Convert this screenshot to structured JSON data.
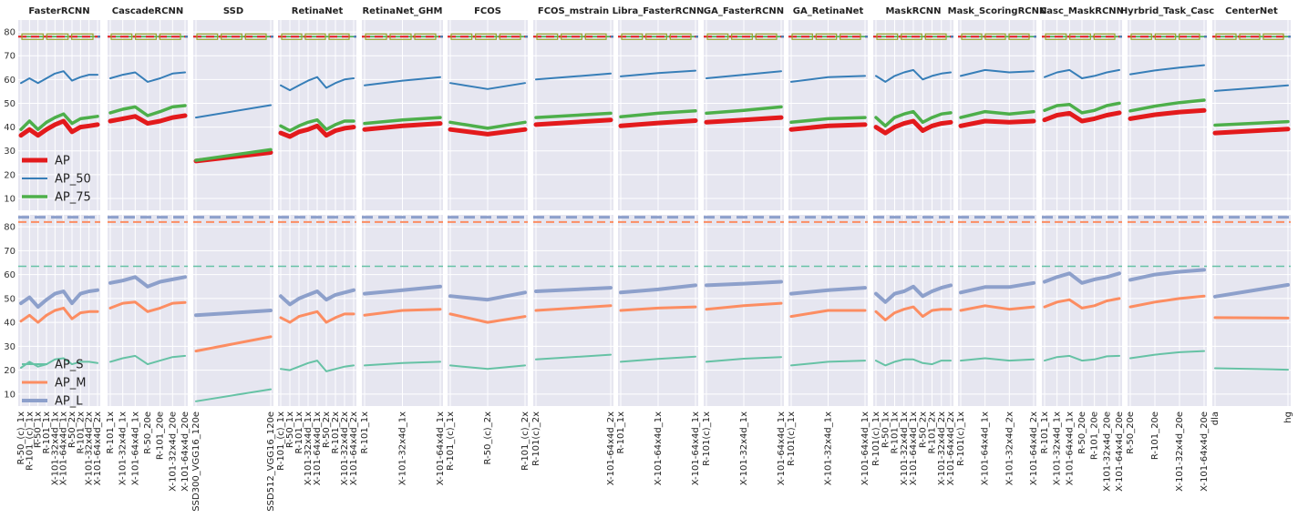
{
  "figure": {
    "rows": [
      {
        "name": "top",
        "ylim": [
          5,
          85
        ],
        "yticks": [
          10,
          20,
          30,
          40,
          50,
          60,
          70,
          80
        ]
      },
      {
        "name": "bottom",
        "ylim": [
          5,
          85
        ],
        "yticks": [
          10,
          20,
          30,
          40,
          50,
          60,
          70,
          80
        ]
      }
    ],
    "grid": true,
    "legends": [
      {
        "row": 0,
        "panel": 0,
        "placement": "lower-left",
        "entries": [
          "AP",
          "AP_50",
          "AP_75"
        ]
      },
      {
        "row": 1,
        "panel": 0,
        "placement": "lower-left",
        "entries": [
          "AP_S",
          "AP_M",
          "AP_L"
        ]
      }
    ]
  },
  "colors": {
    "AP": "#e31a1c",
    "AP_50": "#377eb8",
    "AP_75": "#4daf4a",
    "AP_S": "#66c2a5",
    "AP_M": "#fc8d62",
    "AP_L": "#8da0cb",
    "background": "#e6e6f0",
    "grid": "#ffffff",
    "marker_box": "#9aa52a"
  },
  "chart_data": [
    {
      "type": "line",
      "title": "FasterRCNN",
      "categories": [
        "R-50_(c)_1x",
        "R-101_(c)_1x",
        "R-50_1x",
        "R-101_1x",
        "X-101-32x4d_1x",
        "X-101-64x4d_1x",
        "R-50_2x",
        "R-101_2x",
        "X-101-32x4d_2x",
        "X-101-64x4d_2x"
      ],
      "top": {
        "AP": [
          36.5,
          39,
          36.5,
          39,
          41,
          42.5,
          38,
          40,
          40.5,
          41
        ],
        "AP_50": [
          58.5,
          60.5,
          58.5,
          60.5,
          62.5,
          63.5,
          59.5,
          61,
          62,
          62
        ],
        "AP_75": [
          39,
          42.5,
          39,
          42,
          44,
          45.5,
          41.5,
          43.5,
          44,
          44.5
        ]
      },
      "bottom": {
        "AP_S": [
          21,
          23.5,
          21.5,
          22.5,
          24.5,
          25,
          22.5,
          23.5,
          23.5,
          23
        ],
        "AP_M": [
          40.5,
          43,
          40,
          43,
          45,
          46,
          41.5,
          44,
          44.5,
          44.5
        ],
        "AP_L": [
          48,
          50.5,
          46.5,
          49.5,
          52,
          53,
          48,
          52,
          53,
          53.5
        ]
      }
    },
    {
      "type": "line",
      "title": "CascadeRCNN",
      "categories": [
        "R-101_1x",
        "X-101-32x4d_1x",
        "X-101-64x4d_1x",
        "R-50_20e",
        "R-101_20e",
        "X-101-32x4d_20e",
        "X-101-64x4d_20e"
      ],
      "top": {
        "AP": [
          42.5,
          43.5,
          44.5,
          41.5,
          42.5,
          44,
          44.8
        ],
        "AP_50": [
          60.5,
          62,
          63,
          59,
          60.5,
          62.5,
          63
        ],
        "AP_75": [
          46,
          47.5,
          48.5,
          44.8,
          46.5,
          48.5,
          49
        ]
      },
      "bottom": {
        "AP_S": [
          23.5,
          25,
          26,
          22.5,
          24,
          25.5,
          26
        ],
        "AP_M": [
          46,
          48,
          48.5,
          44.5,
          46,
          48,
          48.3
        ],
        "AP_L": [
          56.5,
          57.5,
          59,
          55,
          57,
          58,
          59
        ]
      }
    },
    {
      "type": "line",
      "title": "SSD",
      "categories": [
        "SSD300_VGG16_120e",
        "SSD512_VGG16_120e"
      ],
      "top": {
        "AP": [
          25.7,
          29.3
        ],
        "AP_50": [
          44,
          49.2
        ],
        "AP_75": [
          26,
          30.5
        ]
      },
      "bottom": {
        "AP_S": [
          7,
          12
        ],
        "AP_M": [
          28,
          34
        ],
        "AP_L": [
          43,
          45
        ]
      }
    },
    {
      "type": "line",
      "title": "RetinaNet",
      "categories": [
        "R-101_(c)_1x",
        "R-50_1x",
        "R-101_1x",
        "X-101-32x4d_1x",
        "X-101-64x4d_1x",
        "R-50_2x",
        "R-101_2x",
        "X-101-32x4d_2x",
        "X-101-64x4d_2x"
      ],
      "top": {
        "AP": [
          37.5,
          36,
          38,
          39,
          40.5,
          36.5,
          38.5,
          39.5,
          40
        ],
        "AP_50": [
          57.5,
          55.5,
          57.5,
          59.5,
          61,
          56.5,
          58.5,
          60,
          60.5
        ],
        "AP_75": [
          40.5,
          38.5,
          40.5,
          42,
          43,
          39,
          41,
          42.5,
          42.5
        ]
      },
      "bottom": {
        "AP_S": [
          20.5,
          20,
          21.5,
          23,
          24,
          19.5,
          20.5,
          21.5,
          22
        ],
        "AP_M": [
          42,
          40,
          42.5,
          43.5,
          44.5,
          40,
          42,
          43.5,
          43.5
        ],
        "AP_L": [
          51,
          47.5,
          50,
          51.5,
          53,
          49.5,
          51.5,
          52.5,
          53.5
        ]
      }
    },
    {
      "type": "line",
      "title": "RetinaNet_GHM",
      "categories": [
        "R-101_1x",
        "X-101-32x4d_1x",
        "X-101-64x4d_1x"
      ],
      "top": {
        "AP": [
          39,
          40.5,
          41.5
        ],
        "AP_50": [
          57.5,
          59.5,
          61
        ],
        "AP_75": [
          41.5,
          43,
          44
        ]
      },
      "bottom": {
        "AP_S": [
          22,
          23,
          23.5
        ],
        "AP_M": [
          43,
          45,
          45.5
        ],
        "AP_L": [
          52,
          53.5,
          55
        ]
      }
    },
    {
      "type": "line",
      "title": "FCOS",
      "categories": [
        "R-101_(c)_1x",
        "R-50_(c)_2x",
        "R-101_(c)_2x"
      ],
      "top": {
        "AP": [
          39,
          37,
          39
        ],
        "AP_50": [
          58.5,
          56,
          58.5
        ],
        "AP_75": [
          42,
          39.5,
          42
        ]
      },
      "bottom": {
        "AP_S": [
          22,
          20.5,
          22
        ],
        "AP_M": [
          43.5,
          40,
          42.5
        ],
        "AP_L": [
          51,
          49.5,
          52.5
        ]
      }
    },
    {
      "type": "line",
      "title": "FCOS_mstrain",
      "categories": [
        "R-101(c)_2x",
        "X-101-64x4d_2x"
      ],
      "top": {
        "AP": [
          41,
          43
        ],
        "AP_50": [
          60,
          62.5
        ],
        "AP_75": [
          44,
          45.8
        ]
      },
      "bottom": {
        "AP_S": [
          24.5,
          26.5
        ],
        "AP_M": [
          45,
          47
        ],
        "AP_L": [
          53,
          54.5
        ]
      }
    },
    {
      "type": "line",
      "title": "Libra_FasterRCNN",
      "categories": [
        "R-101_1x",
        "X-101-64x4d_1x",
        "X-101-64x4d_1x"
      ],
      "top": {
        "AP": [
          40.5,
          41.7,
          42.7
        ],
        "AP_50": [
          61.3,
          62.7,
          63.7
        ],
        "AP_75": [
          44.3,
          45.8,
          46.8
        ]
      },
      "bottom": {
        "AP_S": [
          23.5,
          24.7,
          25.7
        ],
        "AP_M": [
          45,
          46,
          46.5
        ],
        "AP_L": [
          52.5,
          53.8,
          55.5
        ]
      }
    },
    {
      "type": "line",
      "title": "GA_FasterRCNN",
      "categories": [
        "R-101(c)_1x",
        "X-101-32x4d_1x",
        "X-101-64x4d_1x"
      ],
      "top": {
        "AP": [
          42,
          43,
          44
        ],
        "AP_50": [
          60.5,
          62,
          63.5
        ],
        "AP_75": [
          45.8,
          47,
          48.5
        ]
      },
      "bottom": {
        "AP_S": [
          23.5,
          24.8,
          25.5
        ],
        "AP_M": [
          45.5,
          47,
          48
        ],
        "AP_L": [
          55.5,
          56.2,
          57
        ]
      }
    },
    {
      "type": "line",
      "title": "GA_RetinaNet",
      "categories": [
        "R-101(c)_1x",
        "X-101-32x4d_1x",
        "X-101-64x4d_1x"
      ],
      "top": {
        "AP": [
          39,
          40.5,
          41
        ],
        "AP_50": [
          59,
          61,
          61.5
        ],
        "AP_75": [
          42,
          43.5,
          44
        ]
      },
      "bottom": {
        "AP_S": [
          22,
          23.5,
          24
        ],
        "AP_M": [
          42.5,
          45,
          45
        ],
        "AP_L": [
          52,
          53.5,
          54.5
        ]
      }
    },
    {
      "type": "line",
      "title": "MaskRCNN",
      "categories": [
        "R-101(c)_1x",
        "R-50_1x",
        "R-101_1x",
        "X-101-32x4d_1x",
        "X-101-64x4d_1x",
        "R-50_2x",
        "R-101_2x",
        "X-101-32x4d_2x",
        "X-101-64x4d_2x"
      ],
      "top": {
        "AP": [
          40,
          37.5,
          40,
          41.5,
          42.5,
          38.5,
          40.5,
          41.5,
          42
        ],
        "AP_50": [
          61.5,
          59,
          61.5,
          63,
          64,
          60,
          61.5,
          62.5,
          63
        ],
        "AP_75": [
          44,
          40.5,
          44,
          45.5,
          46.5,
          42,
          44,
          45.5,
          46
        ]
      },
      "bottom": {
        "AP_S": [
          24,
          22,
          23.5,
          24.5,
          24.5,
          23,
          22.5,
          24,
          24
        ],
        "AP_M": [
          44.5,
          41,
          44,
          45.5,
          46.5,
          42.5,
          45,
          45.5,
          45.5
        ],
        "AP_L": [
          52,
          48.5,
          52,
          53,
          55,
          51,
          53,
          54.5,
          55.5
        ]
      }
    },
    {
      "type": "line",
      "title": "Mask_ScoringRCNN",
      "categories": [
        "R-101(c)_1x",
        "X-101-64x4d_1x",
        "X-101-32x4d_2x",
        "X-101-64x4d_2x"
      ],
      "top": {
        "AP": [
          40.5,
          42.5,
          42,
          42.5
        ],
        "AP_50": [
          61.5,
          64,
          63,
          63.5
        ],
        "AP_75": [
          44,
          46.5,
          45.5,
          46.5
        ]
      },
      "bottom": {
        "AP_S": [
          24,
          25,
          24,
          24.5
        ],
        "AP_M": [
          45,
          47,
          45.5,
          46.5
        ],
        "AP_L": [
          52.5,
          54.8,
          54.8,
          56.5
        ]
      }
    },
    {
      "type": "line",
      "title": "Casc_MaskRCNN",
      "categories": [
        "R-101_1x",
        "X-101-32x4d_1x",
        "X-101-64x4d_1x",
        "R-50_20e",
        "R-101_20e",
        "X-101-32x4d_20e",
        "X-101-64x4d_20e"
      ],
      "top": {
        "AP": [
          43,
          45,
          45.8,
          42.5,
          43.5,
          45,
          46
        ],
        "AP_50": [
          61,
          63,
          64,
          60.5,
          61.5,
          63,
          64
        ],
        "AP_75": [
          47,
          49,
          49.5,
          46,
          47,
          49,
          50
        ]
      },
      "bottom": {
        "AP_S": [
          24,
          25.5,
          26,
          24,
          24.5,
          25.8,
          26
        ],
        "AP_M": [
          46.5,
          48.5,
          49.5,
          46,
          47,
          49,
          50
        ],
        "AP_L": [
          57,
          59,
          60.5,
          56.5,
          58,
          59,
          60.5
        ]
      }
    },
    {
      "type": "line",
      "title": "Hyrbrid_Task_Casc",
      "categories": [
        "R-50_20e",
        "R-101_20e",
        "X-101-32x4d_20e",
        "X-101-64x4d_20e"
      ],
      "top": {
        "AP": [
          43.5,
          45.2,
          46.3,
          47
        ],
        "AP_50": [
          62.2,
          63.8,
          65,
          66
        ],
        "AP_75": [
          46.8,
          48.8,
          50.3,
          51.3
        ]
      },
      "bottom": {
        "AP_S": [
          25,
          26.5,
          27.5,
          28
        ],
        "AP_M": [
          46.5,
          48.5,
          50,
          51
        ],
        "AP_L": [
          57.8,
          60,
          61.2,
          62
        ]
      }
    },
    {
      "type": "line",
      "title": "CenterNet",
      "categories": [
        "dla",
        "hg"
      ],
      "top": {
        "AP": [
          37.5,
          39.2
        ],
        "AP_50": [
          55.2,
          57.5
        ],
        "AP_75": [
          40.8,
          42.3
        ]
      },
      "bottom": {
        "AP_S": [
          20.8,
          20.2
        ],
        "AP_M": [
          42,
          41.8
        ],
        "AP_L": [
          50.8,
          55.7
        ]
      }
    }
  ]
}
